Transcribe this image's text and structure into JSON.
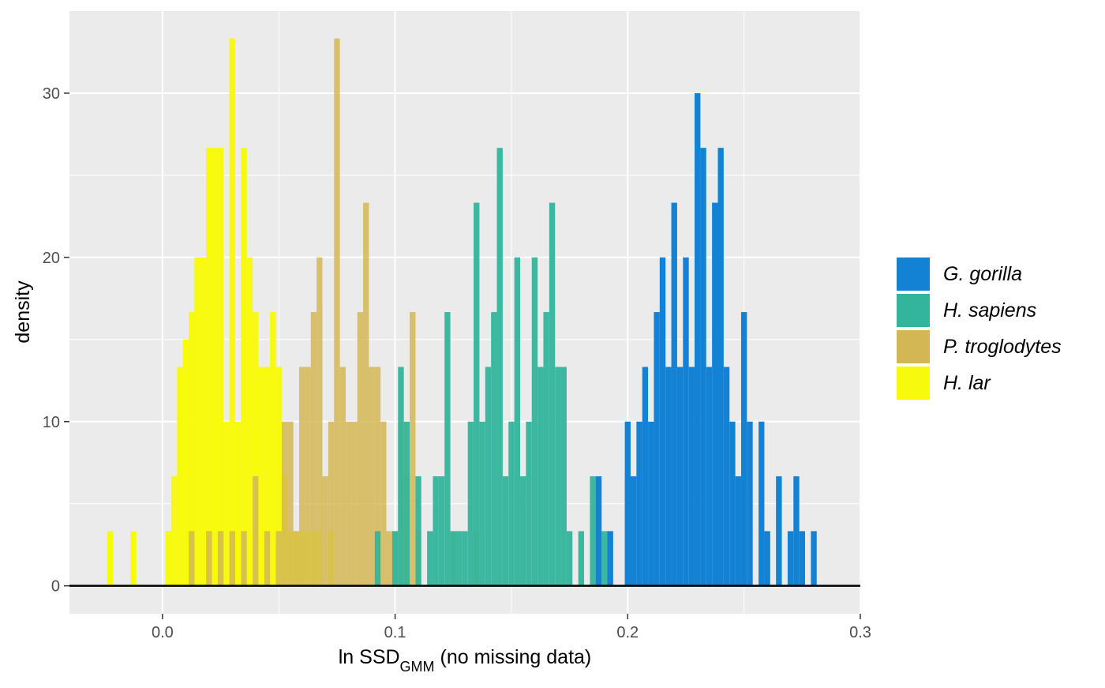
{
  "chart_data": {
    "type": "histogram",
    "title": "",
    "xlabel": {
      "prefix": "ln SSD",
      "subscript": "GMM",
      "suffix": " (no missing data)"
    },
    "ylabel": "density",
    "xlim": [
      -0.04,
      0.3
    ],
    "ylim": [
      -1.7,
      35
    ],
    "bin_width": 0.0025,
    "x_ticks": [
      {
        "value": 0.0,
        "label": "0.0"
      },
      {
        "value": 0.1,
        "label": "0.1"
      },
      {
        "value": 0.2,
        "label": "0.2"
      },
      {
        "value": 0.3,
        "label": "0.3"
      }
    ],
    "y_ticks": [
      {
        "value": 0,
        "label": "0"
      },
      {
        "value": 10,
        "label": "10"
      },
      {
        "value": 20,
        "label": "20"
      },
      {
        "value": 30,
        "label": "30"
      }
    ],
    "grid": true,
    "legend_position": "right",
    "series": [
      {
        "name": "H. lar",
        "color": "#f7fa0c",
        "opacity": 1.0,
        "bins": [
          [
            -0.0225,
            3.33
          ],
          [
            -0.0125,
            3.33
          ],
          [
            0.0025,
            3.33
          ],
          [
            0.005,
            6.67
          ],
          [
            0.0075,
            13.33
          ],
          [
            0.01,
            15
          ],
          [
            0.0125,
            16.67
          ],
          [
            0.015,
            20
          ],
          [
            0.0175,
            20
          ],
          [
            0.02,
            26.67
          ],
          [
            0.0225,
            26.67
          ],
          [
            0.025,
            26.67
          ],
          [
            0.0275,
            10
          ],
          [
            0.03,
            33.33
          ],
          [
            0.0325,
            10
          ],
          [
            0.035,
            26.67
          ],
          [
            0.0375,
            20
          ],
          [
            0.04,
            16.67
          ],
          [
            0.0425,
            13.33
          ],
          [
            0.045,
            13.33
          ],
          [
            0.0475,
            16.67
          ],
          [
            0.05,
            13.33
          ],
          [
            0.0525,
            6.67
          ],
          [
            0.055,
            3.33
          ],
          [
            0.0575,
            3.33
          ],
          [
            0.06,
            3.33
          ],
          [
            0.0625,
            3.33
          ],
          [
            0.065,
            3.33
          ],
          [
            0.0675,
            3.33
          ],
          [
            0.0725,
            3.33
          ]
        ]
      },
      {
        "name": "P. troglodytes",
        "color": "#d4b755",
        "opacity": 0.85,
        "bins": [
          [
            0.0125,
            3.33
          ],
          [
            0.02,
            3.33
          ],
          [
            0.025,
            3.33
          ],
          [
            0.03,
            3.33
          ],
          [
            0.035,
            3.33
          ],
          [
            0.04,
            6.67
          ],
          [
            0.045,
            3.33
          ],
          [
            0.05,
            3.33
          ],
          [
            0.0525,
            10
          ],
          [
            0.055,
            10
          ],
          [
            0.0575,
            3.33
          ],
          [
            0.06,
            13.33
          ],
          [
            0.0625,
            13.33
          ],
          [
            0.065,
            16.67
          ],
          [
            0.0675,
            20
          ],
          [
            0.07,
            6.67
          ],
          [
            0.0725,
            10
          ],
          [
            0.075,
            33.33
          ],
          [
            0.0775,
            13.33
          ],
          [
            0.08,
            10
          ],
          [
            0.0825,
            10
          ],
          [
            0.085,
            16.67
          ],
          [
            0.0875,
            23.33
          ],
          [
            0.09,
            13.33
          ],
          [
            0.0925,
            13.33
          ],
          [
            0.095,
            10
          ],
          [
            0.0975,
            3.33
          ],
          [
            0.1,
            3.33
          ],
          [
            0.1025,
            10
          ],
          [
            0.105,
            6.67
          ],
          [
            0.1075,
            16.67
          ],
          [
            0.11,
            3.33
          ],
          [
            0.125,
            3.33
          ],
          [
            0.135,
            3.33
          ]
        ]
      },
      {
        "name": "H. sapiens",
        "color": "#33b59c",
        "opacity": 0.95,
        "bins": [
          [
            0.0925,
            3.33
          ],
          [
            0.1,
            3.33
          ],
          [
            0.1025,
            13.33
          ],
          [
            0.105,
            10
          ],
          [
            0.11,
            6.67
          ],
          [
            0.115,
            3.33
          ],
          [
            0.1175,
            6.67
          ],
          [
            0.12,
            6.67
          ],
          [
            0.1225,
            16.67
          ],
          [
            0.125,
            3.33
          ],
          [
            0.1275,
            3.33
          ],
          [
            0.13,
            3.33
          ],
          [
            0.1325,
            10
          ],
          [
            0.135,
            23.33
          ],
          [
            0.1375,
            10
          ],
          [
            0.14,
            13.33
          ],
          [
            0.1425,
            16.67
          ],
          [
            0.145,
            26.67
          ],
          [
            0.1475,
            6.67
          ],
          [
            0.15,
            10
          ],
          [
            0.1525,
            20
          ],
          [
            0.155,
            6.67
          ],
          [
            0.1575,
            10
          ],
          [
            0.16,
            20
          ],
          [
            0.1625,
            13.33
          ],
          [
            0.165,
            16.67
          ],
          [
            0.1675,
            23.33
          ],
          [
            0.17,
            13.33
          ],
          [
            0.1725,
            13.33
          ],
          [
            0.175,
            3.33
          ],
          [
            0.18,
            3.33
          ],
          [
            0.185,
            6.67
          ],
          [
            0.1875,
            6.67
          ],
          [
            0.19,
            3.33
          ],
          [
            0.2,
            6.67
          ]
        ]
      },
      {
        "name": "G. gorilla",
        "color": "#1382d4",
        "opacity": 1.0,
        "bins": [
          [
            0.1875,
            6.67
          ],
          [
            0.1925,
            3.33
          ],
          [
            0.2,
            10
          ],
          [
            0.2025,
            6.67
          ],
          [
            0.205,
            10
          ],
          [
            0.2075,
            13.33
          ],
          [
            0.21,
            10
          ],
          [
            0.2125,
            16.67
          ],
          [
            0.215,
            20
          ],
          [
            0.2175,
            13.33
          ],
          [
            0.22,
            23.33
          ],
          [
            0.2225,
            13.33
          ],
          [
            0.225,
            20
          ],
          [
            0.2275,
            13.33
          ],
          [
            0.23,
            30
          ],
          [
            0.2325,
            26.67
          ],
          [
            0.235,
            13.33
          ],
          [
            0.2375,
            23.33
          ],
          [
            0.24,
            26.67
          ],
          [
            0.2425,
            13.33
          ],
          [
            0.245,
            10
          ],
          [
            0.2475,
            6.67
          ],
          [
            0.25,
            16.67
          ],
          [
            0.2525,
            10
          ],
          [
            0.2575,
            10
          ],
          [
            0.26,
            3.33
          ],
          [
            0.265,
            6.67
          ],
          [
            0.27,
            3.33
          ],
          [
            0.2725,
            6.67
          ],
          [
            0.275,
            3.33
          ],
          [
            0.28,
            3.33
          ]
        ]
      }
    ],
    "legend": [
      {
        "label": "G. gorilla",
        "color": "#1382d4"
      },
      {
        "label": "H. sapiens",
        "color": "#33b59c"
      },
      {
        "label": "P. troglodytes",
        "color": "#d4b755"
      },
      {
        "label": "H. lar",
        "color": "#f7fa0c"
      }
    ]
  }
}
